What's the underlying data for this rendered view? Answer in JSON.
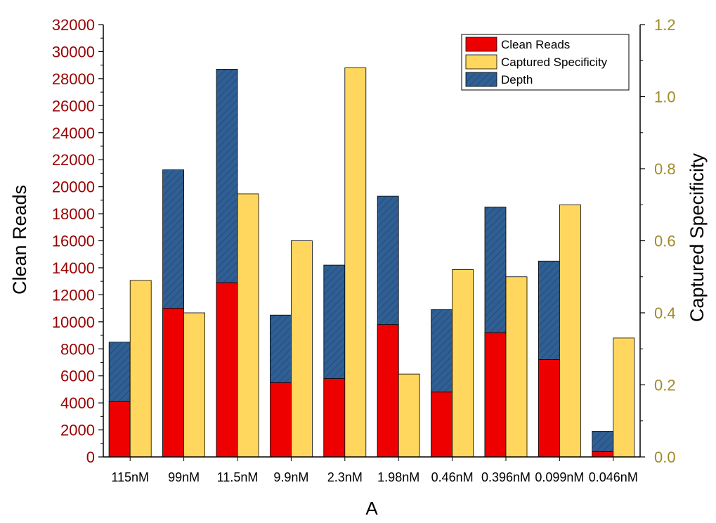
{
  "chart_data": {
    "type": "bar",
    "categories": [
      "115nM",
      "99nM",
      "11.5nM",
      "9.9nM",
      "2.3nM",
      "1.98nM",
      "0.46nM",
      "0.396nM",
      "0.099nM",
      "0.046nM"
    ],
    "series": [
      {
        "name": "Clean Reads",
        "axis": "left",
        "stack": "left",
        "color": "#ee0000",
        "values": [
          4100,
          11000,
          12900,
          5500,
          5800,
          9800,
          4800,
          9200,
          7200,
          400
        ]
      },
      {
        "name": "Depth",
        "axis": "left",
        "stack": "left",
        "color": "#2f5f94",
        "pattern": "diagonal-hatch",
        "values": [
          8500,
          21250,
          28700,
          10500,
          14200,
          19300,
          10900,
          18500,
          14500,
          1900
        ]
      },
      {
        "name": "Captured Specificity",
        "axis": "right",
        "color": "#ffd75e",
        "values": [
          0.49,
          0.4,
          0.73,
          0.6,
          1.08,
          0.23,
          0.52,
          0.5,
          0.7,
          0.33
        ]
      }
    ],
    "legend": {
      "position": "top-right",
      "entries": [
        {
          "label": "Clean Reads",
          "color": "#ee0000"
        },
        {
          "label": "Captured Specificity",
          "color": "#ffd75e"
        },
        {
          "label": "Depth",
          "color": "#2f5f94",
          "pattern": true
        }
      ]
    },
    "xlabel": "A",
    "ylabel": "Clean Reads",
    "y2label": "Captured Specificity",
    "ylim": [
      0,
      32000
    ],
    "y2lim": [
      0,
      1.2
    ],
    "yticks": [
      "0",
      "2000",
      "4000",
      "6000",
      "8000",
      "10000",
      "12000",
      "14000",
      "16000",
      "18000",
      "20000",
      "22000",
      "24000",
      "26000",
      "28000",
      "30000",
      "32000"
    ],
    "y2ticks": [
      "0.0",
      "0.2",
      "0.4",
      "0.6",
      "0.8",
      "1.0",
      "1.2"
    ],
    "colors": {
      "left_axis": "#990000",
      "right_axis": "#a08a28",
      "axis_line": "#000000"
    }
  }
}
